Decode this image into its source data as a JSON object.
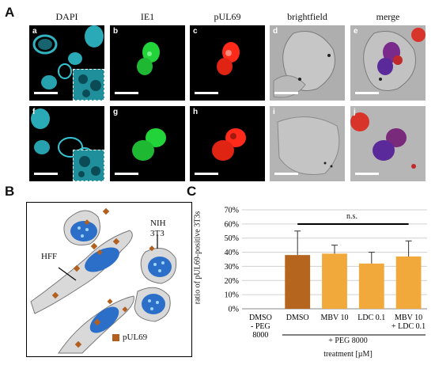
{
  "panels": {
    "a": "A",
    "b": "B",
    "c": "C"
  },
  "channel_headers": [
    "DAPI",
    "IE1",
    "pUL69",
    "brightfield",
    "merge"
  ],
  "rows": [
    {
      "tiles": [
        "a",
        "b",
        "c",
        "d",
        "e"
      ]
    },
    {
      "tiles": [
        "f",
        "g",
        "h",
        "i",
        "j"
      ]
    }
  ],
  "diagram": {
    "label_hff": "HFF",
    "label_nih": "NIH",
    "label_3t3": "3T3",
    "legend_label": "pUL69"
  },
  "colors": {
    "dapi": "#36c7d6",
    "ie1": "#22d43a",
    "pul69": "#ff2a1a",
    "bar_dark": "#b5651d",
    "bar_light": "#f0a93a",
    "cell_fill": "#d9d9d9",
    "nucleus": "#2c6fc9",
    "marker": "#b3601f"
  },
  "chart_data": {
    "type": "bar",
    "title": "",
    "ylabel": "ratio of pUL69-positive 3T3s",
    "xlabel": "treatment [µM]",
    "group_label": "+ PEG 8000",
    "significance": "n.s.",
    "ylim": [
      0,
      70
    ],
    "y_ticks": [
      "0%",
      "10%",
      "20%",
      "30%",
      "40%",
      "50%",
      "60%",
      "70%"
    ],
    "categories": [
      [
        "DMSO",
        "- PEG",
        "8000"
      ],
      [
        "DMSO"
      ],
      [
        "MBV 10"
      ],
      [
        "LDC 0.1"
      ],
      [
        "MBV 10",
        "+ LDC 0.1"
      ]
    ],
    "values": [
      0,
      38,
      39,
      32,
      37
    ],
    "errors": [
      0,
      17,
      6,
      8,
      11
    ],
    "bar_colors": [
      "dark",
      "dark",
      "light",
      "light",
      "light"
    ],
    "grid": true
  }
}
